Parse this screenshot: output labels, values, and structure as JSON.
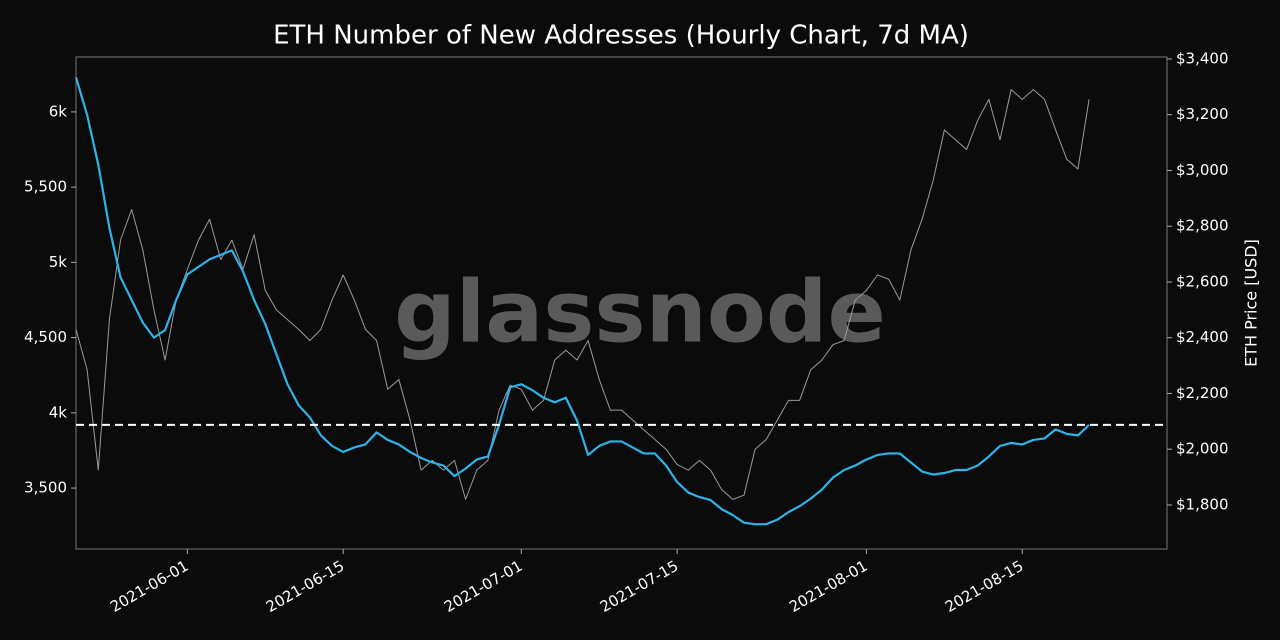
{
  "chart_data": {
    "type": "line",
    "title": "ETH Number of New Addresses (Hourly Chart, 7d MA)",
    "watermark": "glassnode",
    "y2label": "ETH Price [USD]",
    "x": [
      "2021-05-22",
      "2021-05-23",
      "2021-05-24",
      "2021-05-25",
      "2021-05-26",
      "2021-05-27",
      "2021-05-28",
      "2021-05-29",
      "2021-05-30",
      "2021-05-31",
      "2021-06-01",
      "2021-06-02",
      "2021-06-03",
      "2021-06-04",
      "2021-06-05",
      "2021-06-06",
      "2021-06-07",
      "2021-06-08",
      "2021-06-09",
      "2021-06-10",
      "2021-06-11",
      "2021-06-12",
      "2021-06-13",
      "2021-06-14",
      "2021-06-15",
      "2021-06-16",
      "2021-06-17",
      "2021-06-18",
      "2021-06-19",
      "2021-06-20",
      "2021-06-21",
      "2021-06-22",
      "2021-06-23",
      "2021-06-24",
      "2021-06-25",
      "2021-06-26",
      "2021-06-27",
      "2021-06-28",
      "2021-06-29",
      "2021-06-30",
      "2021-07-01",
      "2021-07-02",
      "2021-07-03",
      "2021-07-04",
      "2021-07-05",
      "2021-07-06",
      "2021-07-07",
      "2021-07-08",
      "2021-07-09",
      "2021-07-10",
      "2021-07-11",
      "2021-07-12",
      "2021-07-13",
      "2021-07-14",
      "2021-07-15",
      "2021-07-16",
      "2021-07-17",
      "2021-07-18",
      "2021-07-19",
      "2021-07-20",
      "2021-07-21",
      "2021-07-22",
      "2021-07-23",
      "2021-07-24",
      "2021-07-25",
      "2021-07-26",
      "2021-07-27",
      "2021-07-28",
      "2021-07-29",
      "2021-07-30",
      "2021-07-31",
      "2021-08-01",
      "2021-08-02",
      "2021-08-03",
      "2021-08-04",
      "2021-08-05",
      "2021-08-06",
      "2021-08-07",
      "2021-08-08",
      "2021-08-09",
      "2021-08-10",
      "2021-08-11",
      "2021-08-12",
      "2021-08-13",
      "2021-08-14",
      "2021-08-15",
      "2021-08-16",
      "2021-08-17",
      "2021-08-18",
      "2021-08-19",
      "2021-08-20",
      "2021-08-21"
    ],
    "series": [
      {
        "color": "#9a9a9a",
        "axis": "y2",
        "values": [
          2430,
          2285,
          1925,
          2465,
          2750,
          2860,
          2715,
          2500,
          2320,
          2535,
          2645,
          2750,
          2825,
          2680,
          2750,
          2645,
          2770,
          2570,
          2500,
          2465,
          2430,
          2390,
          2430,
          2535,
          2625,
          2535,
          2430,
          2390,
          2215,
          2250,
          2105,
          1925,
          1960,
          1925,
          1960,
          1820,
          1925,
          1960,
          2140,
          2230,
          2215,
          2140,
          2175,
          2320,
          2355,
          2320,
          2390,
          2250,
          2140,
          2140,
          2105,
          2070,
          2035,
          2000,
          1945,
          1925,
          1960,
          1925,
          1855,
          1820,
          1835,
          2000,
          2035,
          2105,
          2175,
          2175,
          2285,
          2320,
          2375,
          2390,
          2535,
          2570,
          2625,
          2610,
          2535,
          2715,
          2825,
          2965,
          3145,
          3110,
          3075,
          3180,
          3255,
          3110,
          3290,
          3255,
          3290,
          3255,
          3145,
          3040,
          3005,
          3255
        ]
      },
      {
        "color": "#2fb2e8",
        "values": [
          6230,
          5980,
          5650,
          5230,
          4900,
          4750,
          4600,
          4500,
          4550,
          4750,
          4920,
          4970,
          5020,
          5050,
          5080,
          4940,
          4750,
          4590,
          4390,
          4190,
          4050,
          3970,
          3850,
          3780,
          3740,
          3770,
          3790,
          3870,
          3820,
          3790,
          3740,
          3700,
          3670,
          3650,
          3580,
          3630,
          3690,
          3710,
          3920,
          4170,
          4190,
          4150,
          4100,
          4070,
          4100,
          3950,
          3720,
          3780,
          3810,
          3810,
          3770,
          3730,
          3730,
          3650,
          3540,
          3470,
          3440,
          3420,
          3360,
          3320,
          3270,
          3260,
          3260,
          3290,
          3340,
          3380,
          3430,
          3490,
          3570,
          3620,
          3650,
          3690,
          3720,
          3730,
          3730,
          3670,
          3610,
          3590,
          3600,
          3620,
          3620,
          3650,
          3710,
          3780,
          3800,
          3790,
          3820,
          3830,
          3890,
          3860,
          3850,
          3920
        ]
      }
    ],
    "reference_line": {
      "value": 3920,
      "color": "#ffffff",
      "dash": true
    },
    "xlim": [
      "2021-05-22",
      "2021-08-28"
    ],
    "xticks": [
      "2021-06-01",
      "2021-06-15",
      "2021-07-01",
      "2021-07-15",
      "2021-08-01",
      "2021-08-15"
    ],
    "ylim": [
      3095,
      6365
    ],
    "yticks": [
      {
        "value": 3500,
        "label": "3,500"
      },
      {
        "value": 4000,
        "label": "4k"
      },
      {
        "value": 4500,
        "label": "4,500"
      },
      {
        "value": 5000,
        "label": "5k"
      },
      {
        "value": 5500,
        "label": "5,500"
      },
      {
        "value": 6000,
        "label": "6k"
      }
    ],
    "y2lim": [
      1642,
      3407
    ],
    "y2ticks": [
      {
        "value": 1800,
        "label": "$1,800"
      },
      {
        "value": 2000,
        "label": "$2,000"
      },
      {
        "value": 2200,
        "label": "$2,200"
      },
      {
        "value": 2400,
        "label": "$2,400"
      },
      {
        "value": 2600,
        "label": "$2,600"
      },
      {
        "value": 2800,
        "label": "$2,800"
      },
      {
        "value": 3000,
        "label": "$3,000"
      },
      {
        "value": 3200,
        "label": "$3,200"
      },
      {
        "value": 3400,
        "label": "$3,400"
      }
    ],
    "grid": false
  }
}
